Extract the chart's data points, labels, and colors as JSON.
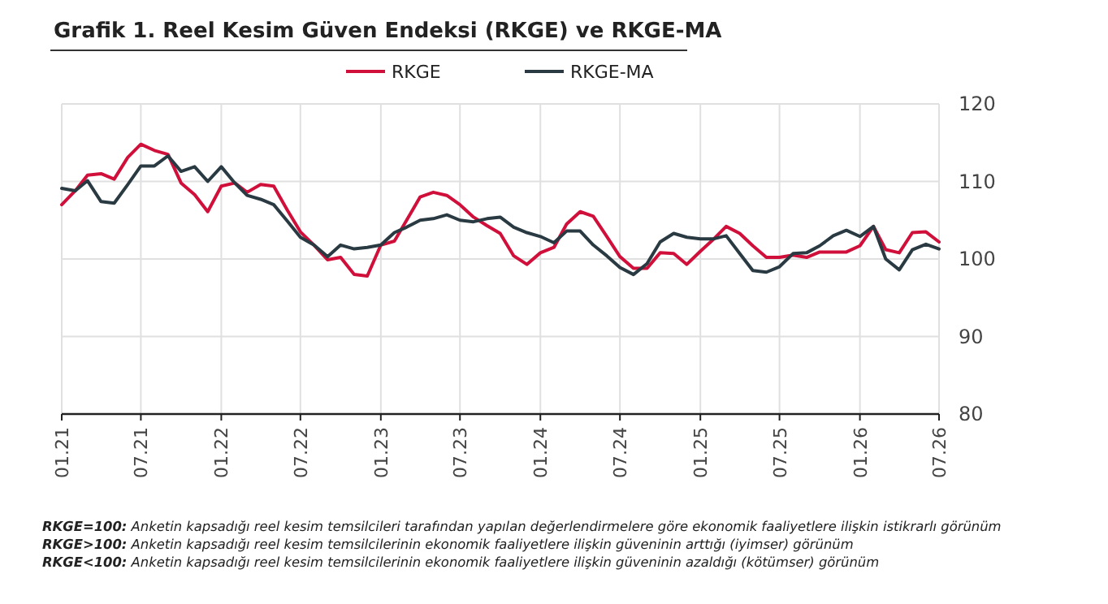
{
  "chart_data": {
    "type": "line",
    "title": "Grafik 1. Reel Kesim Güven Endeksi (RKGE) ve RKGE-MA",
    "x": [
      "2021-01",
      "2021-02",
      "2021-03",
      "2021-04",
      "2021-05",
      "2021-06",
      "2021-07",
      "2021-08",
      "2021-09",
      "2021-10",
      "2021-11",
      "2021-12",
      "2022-01",
      "2022-02",
      "2022-03",
      "2022-04",
      "2022-05",
      "2022-06",
      "2022-07",
      "2022-08",
      "2022-09",
      "2022-10",
      "2022-11",
      "2022-12",
      "2023-01",
      "2023-02",
      "2023-03",
      "2023-04",
      "2023-05",
      "2023-06",
      "2023-07",
      "2023-08",
      "2023-09",
      "2023-10",
      "2023-11",
      "2023-12",
      "2024-01",
      "2024-02",
      "2024-03",
      "2024-04",
      "2024-05",
      "2024-06",
      "2024-07",
      "2024-08",
      "2024-09",
      "2024-10",
      "2024-11",
      "2024-12",
      "2025-01",
      "2025-02",
      "2025-03",
      "2025-04",
      "2025-05",
      "2025-06",
      "2025-07",
      "2025-08",
      "2025-09",
      "2025-10",
      "2025-11",
      "2025-12",
      "2026-01",
      "2026-02",
      "2026-03",
      "2026-04",
      "2026-05",
      "2026-06",
      "2026-07"
    ],
    "series": [
      {
        "name": "RKGE",
        "color": "#d0103a",
        "values": [
          107.0,
          108.8,
          110.8,
          111.0,
          110.3,
          113.1,
          114.8,
          114.0,
          113.5,
          109.8,
          108.3,
          106.1,
          109.4,
          109.8,
          108.6,
          109.6,
          109.4,
          106.3,
          103.5,
          101.8,
          99.9,
          100.2,
          98.0,
          97.8,
          101.8,
          102.3,
          105.0,
          108.0,
          108.6,
          108.2,
          107.0,
          105.4,
          104.3,
          103.3,
          100.4,
          99.3,
          100.8,
          101.5,
          104.5,
          106.1,
          105.5,
          102.9,
          100.3,
          98.8,
          98.8,
          100.8,
          100.7,
          99.3,
          101.0,
          102.6,
          104.2,
          103.3,
          101.7,
          100.2,
          100.2,
          100.5,
          100.2,
          100.9,
          100.9,
          100.9,
          101.7,
          104.2,
          101.2,
          100.8,
          103.4,
          103.5,
          102.2
        ]
      },
      {
        "name": "RKGE-MA",
        "color": "#2a3a42",
        "values": [
          109.1,
          108.8,
          110.1,
          107.4,
          107.2,
          109.6,
          112.0,
          112.0,
          113.3,
          111.3,
          111.9,
          110.0,
          111.9,
          109.8,
          108.2,
          107.7,
          107.0,
          104.9,
          102.8,
          101.8,
          100.3,
          101.8,
          101.3,
          101.5,
          101.8,
          103.4,
          104.1,
          105.0,
          105.2,
          105.7,
          105.0,
          104.8,
          105.2,
          105.4,
          104.1,
          103.4,
          102.9,
          102.1,
          103.6,
          103.6,
          101.8,
          100.4,
          98.9,
          98.0,
          99.4,
          102.2,
          103.3,
          102.8,
          102.6,
          102.6,
          103.0,
          100.7,
          98.5,
          98.3,
          99.0,
          100.7,
          100.8,
          101.7,
          103.0,
          103.7,
          102.9,
          104.2,
          100.0,
          98.6,
          101.2,
          101.9,
          101.3
        ]
      }
    ],
    "xlim": [
      "2021-01",
      "2026-07"
    ],
    "xticks": [
      {
        "value": "2021-01",
        "label": "01.21"
      },
      {
        "value": "2021-07",
        "label": "07.21"
      },
      {
        "value": "2022-01",
        "label": "01.22"
      },
      {
        "value": "2022-07",
        "label": "07.22"
      },
      {
        "value": "2023-01",
        "label": "01.23"
      },
      {
        "value": "2023-07",
        "label": "07.23"
      },
      {
        "value": "2024-01",
        "label": "01.24"
      },
      {
        "value": "2024-07",
        "label": "07.24"
      },
      {
        "value": "2025-01",
        "label": "01.25"
      },
      {
        "value": "2025-07",
        "label": "07.25"
      },
      {
        "value": "2026-01",
        "label": "01.26"
      },
      {
        "value": "2026-07",
        "label": "07.26"
      }
    ],
    "ylim": [
      80,
      120
    ],
    "yticks": [
      80,
      90,
      100,
      110,
      120
    ],
    "grid": true,
    "legend": "top",
    "marker": "none",
    "line_style": "solid",
    "annotations": [
      "RKGE=100: Anketin kapsadığı reel kesim temsilcileri tarafından yapılan değerlendirmelere göre ekonomik faaliyetlere ilişkin istikrarlı görünüm",
      "RKGE>100: Anketin kapsadığı reel kesim temsilcilerinin ekonomik faaliyetlere ilişkin güveninin arttığı (iyimser) görünüm",
      "RKGE<100: Anketin kapsadığı reel kesim temsilcilerinin ekonomik faaliyetlere ilişkin güveninin azaldığı (kötümser) görünüm"
    ]
  }
}
